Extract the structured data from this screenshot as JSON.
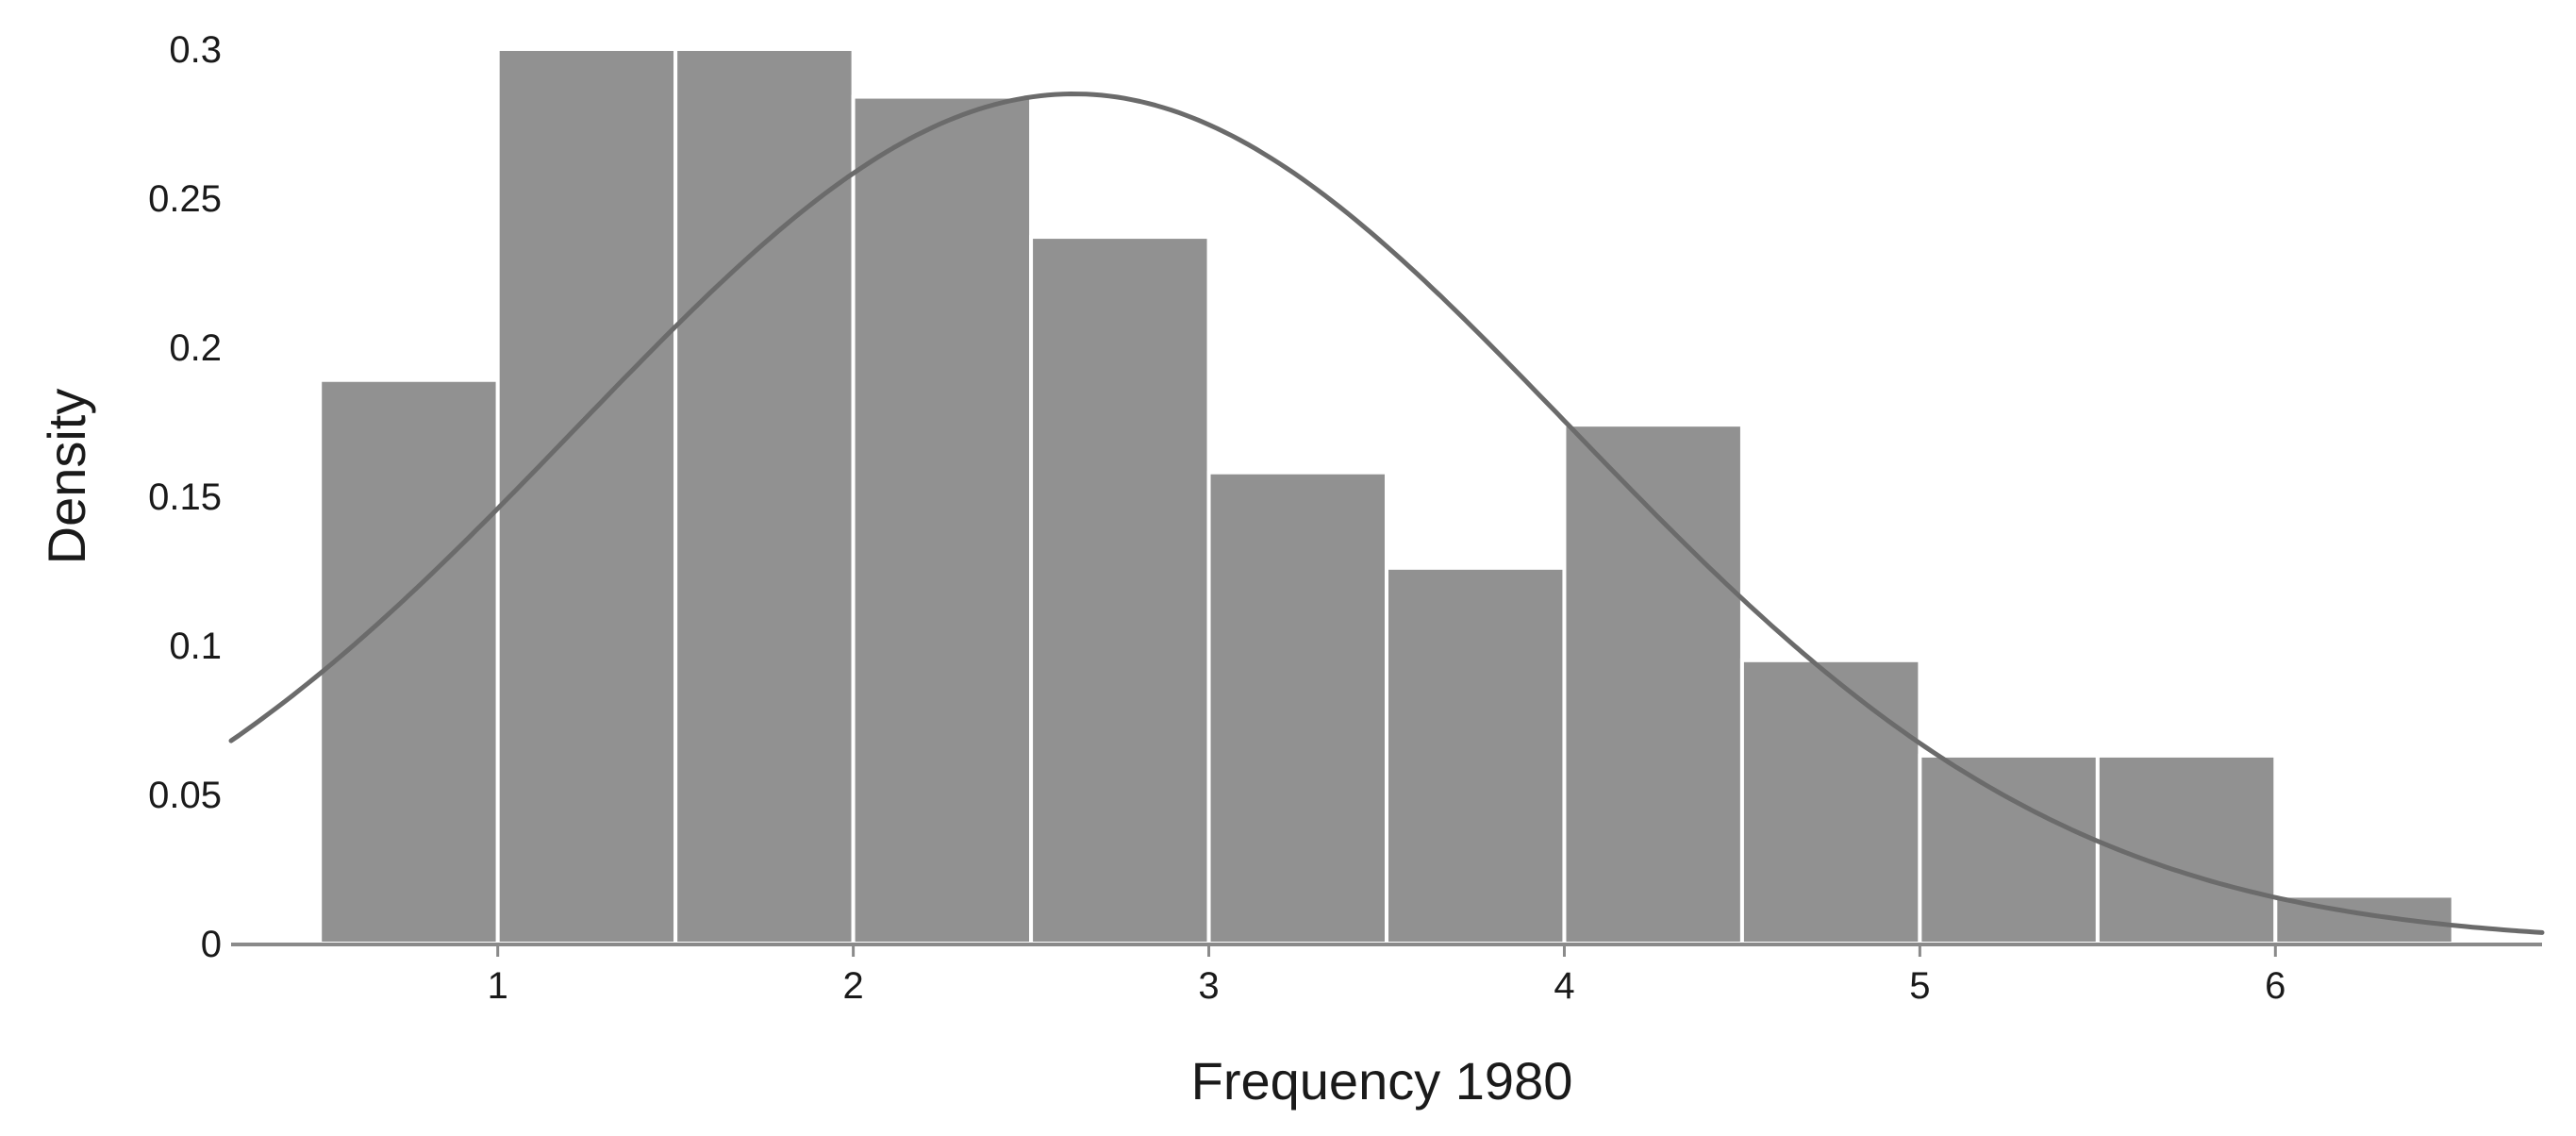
{
  "chart_data": {
    "type": "bar",
    "subtype": "histogram-with-density-curve",
    "xlabel": "Frequency 1980",
    "ylabel": "Density",
    "xlim": [
      0.25,
      6.75
    ],
    "ylim": [
      0,
      0.3
    ],
    "x_ticks": [
      1,
      2,
      3,
      4,
      5,
      6
    ],
    "y_ticks": [
      0,
      0.05,
      0.1,
      0.15,
      0.2,
      0.25,
      0.3
    ],
    "y_tick_labels": [
      "0",
      "0.05",
      "0.1",
      "0.15",
      "0.2",
      "0.25",
      "0.3"
    ],
    "bins": [
      {
        "x0": 0.5,
        "x1": 1.0,
        "value": 0.189
      },
      {
        "x0": 1.0,
        "x1": 1.5,
        "value": 0.3
      },
      {
        "x0": 1.5,
        "x1": 2.0,
        "value": 0.3
      },
      {
        "x0": 2.0,
        "x1": 2.5,
        "value": 0.284
      },
      {
        "x0": 2.5,
        "x1": 3.0,
        "value": 0.237
      },
      {
        "x0": 3.0,
        "x1": 3.5,
        "value": 0.158
      },
      {
        "x0": 3.5,
        "x1": 4.0,
        "value": 0.126
      },
      {
        "x0": 4.0,
        "x1": 4.5,
        "value": 0.174
      },
      {
        "x0": 4.5,
        "x1": 5.0,
        "value": 0.095
      },
      {
        "x0": 5.0,
        "x1": 5.5,
        "value": 0.063
      },
      {
        "x0": 5.5,
        "x1": 6.0,
        "value": 0.063
      },
      {
        "x0": 6.0,
        "x1": 6.5,
        "value": 0.016
      }
    ],
    "curve": {
      "type": "normal-density",
      "mean": 2.62,
      "sd": 1.4
    },
    "grid": false,
    "legend": "none",
    "colors": {
      "bar": "#919191",
      "bar_edge": "#ffffff",
      "curve": "#6b6b6b",
      "axis": "#8a8a8a"
    }
  }
}
